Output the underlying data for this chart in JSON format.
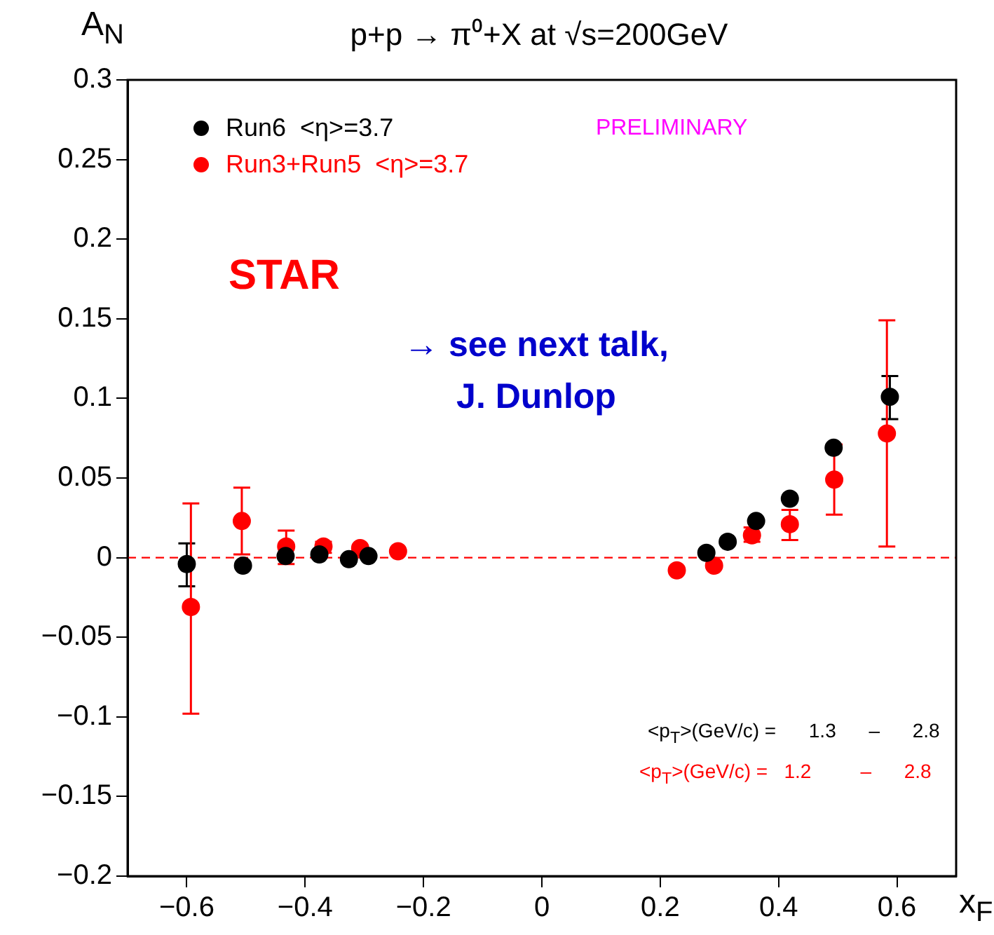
{
  "chart_data": {
    "type": "scatter",
    "title": "p+p → π⁰+X at √s=200GeV",
    "xlabel": "x$_{F}$",
    "ylabel": "A$_{N}$",
    "xlim": [
      -0.7,
      0.7
    ],
    "xticks": [
      -0.6,
      -0.4,
      -0.2,
      0,
      0.2,
      0.4,
      0.6
    ],
    "ylim": [
      -0.2,
      0.3
    ],
    "yticks": [
      -0.2,
      -0.15,
      -0.1,
      -0.05,
      0,
      0.05,
      0.1,
      0.15,
      0.2,
      0.25,
      0.3
    ],
    "legend": "top left",
    "marker": "circle",
    "series": [
      {
        "name": "Run6  <η>=3.7",
        "color": "#000000",
        "x": [
          -0.6,
          -0.505,
          -0.433,
          -0.376,
          -0.326,
          -0.293,
          0.278,
          0.314,
          0.362,
          0.419,
          0.493,
          0.588
        ],
        "values": [
          -0.004,
          -0.005,
          0.001,
          0.002,
          -0.001,
          0.001,
          0.003,
          0.01,
          0.023,
          0.037,
          0.069,
          0.101
        ],
        "errors": [
          [
            -0.018,
            0.009
          ],
          null,
          null,
          null,
          null,
          null,
          null,
          null,
          null,
          null,
          null,
          [
            0.087,
            0.114
          ]
        ]
      },
      {
        "name": "Run3+Run5  <η>=3.7",
        "color": "#ff0000",
        "x": [
          -0.593,
          -0.507,
          -0.432,
          -0.369,
          -0.307,
          -0.243,
          0.228,
          0.291,
          0.355,
          0.419,
          0.494,
          0.583
        ],
        "values": [
          -0.031,
          0.023,
          0.007,
          0.007,
          0.006,
          0.004,
          -0.008,
          -0.005,
          0.014,
          0.021,
          0.049,
          0.078
        ],
        "errors": [
          [
            -0.098,
            0.034
          ],
          [
            0.002,
            0.044
          ],
          [
            -0.004,
            0.017
          ],
          [
            0.003,
            0.01
          ],
          null,
          null,
          null,
          null,
          [
            0.01,
            0.019
          ],
          [
            0.011,
            0.03
          ],
          [
            0.027,
            0.071
          ],
          [
            0.007,
            0.149
          ]
        ]
      }
    ],
    "ref_lines": [
      {
        "axis": "y",
        "value": 0,
        "color": "#ff0000",
        "line_style": "dashed"
      }
    ],
    "annotations": [
      "PRELIMINARY",
      "STAR",
      "→ see next talk, J. Dunlop",
      "<p$_{T}$>(GeV/c) =      1.3      –      2.8",
      "<p$_{T}$>(GeV/c) =   1.2         –      2.8"
    ]
  }
}
